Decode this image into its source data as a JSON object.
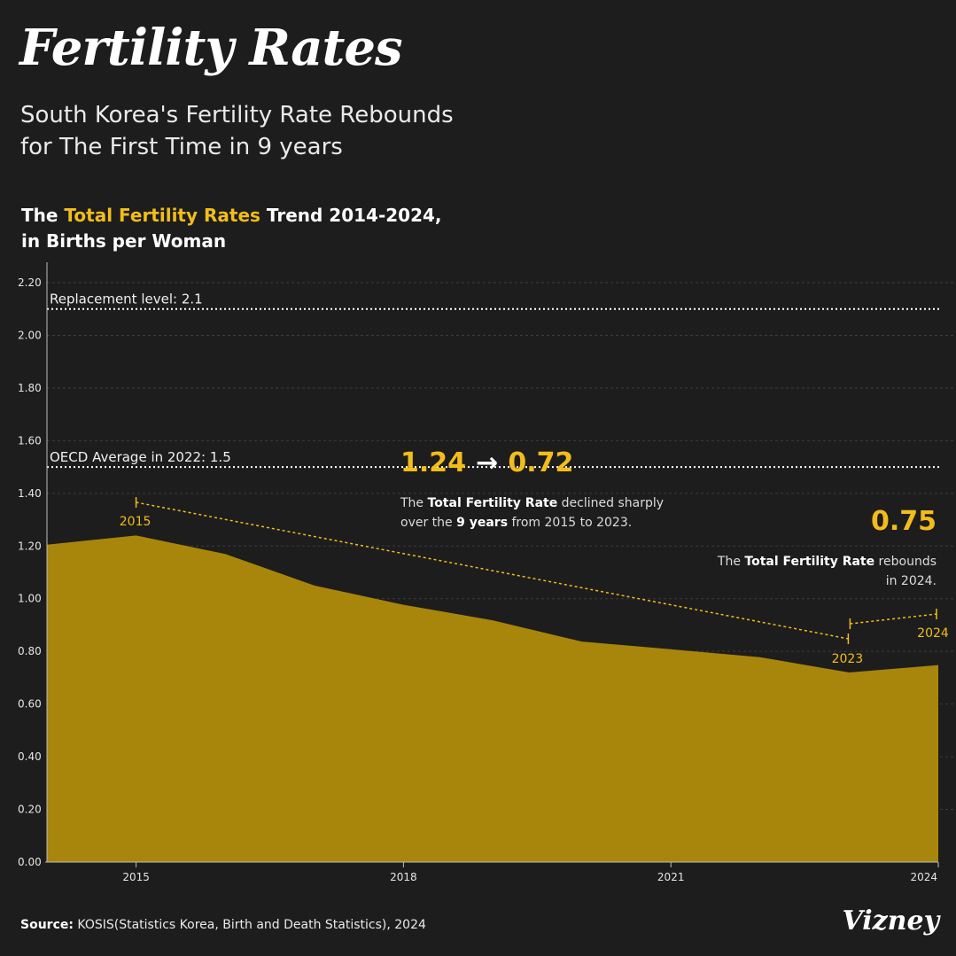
{
  "header": {
    "title": "Fertility Rates",
    "subtitle_line1": "South Korea's Fertility Rate Rebounds",
    "subtitle_line2": "for The First Time in 9 years"
  },
  "chart_heading": {
    "prefix": "The ",
    "highlight": "Total Fertility Rates",
    "suffix": " Trend 2014-2024,",
    "line2": "in Births per Woman"
  },
  "colors": {
    "background": "#1d1d1d",
    "area": "#a8860b",
    "accent": "#f2bd1b"
  },
  "chart_data": {
    "type": "area",
    "x": [
      2014,
      2015,
      2016,
      2017,
      2018,
      2019,
      2020,
      2021,
      2022,
      2023,
      2024
    ],
    "values": [
      1.205,
      1.24,
      1.17,
      1.05,
      0.977,
      0.918,
      0.837,
      0.808,
      0.778,
      0.72,
      0.748
    ],
    "ylim": [
      0,
      2.2
    ],
    "xlim": [
      2014,
      2024
    ],
    "yticks": [
      0,
      0.2,
      0.4,
      0.6,
      0.8,
      1.0,
      1.2,
      1.4,
      1.6,
      1.8,
      2.0,
      2.2
    ],
    "ytick_labels": [
      "0.00",
      "0.20",
      "0.40",
      "0.60",
      "0.80",
      "1.00",
      "1.20",
      "1.40",
      "1.60",
      "1.80",
      "2.00",
      "2.20"
    ],
    "xticks": [
      2015,
      2018,
      2021,
      2024
    ],
    "xtick_labels": [
      "2015",
      "2018",
      "2021",
      "2024"
    ],
    "grid": true,
    "reference_lines": [
      {
        "value": 2.1,
        "label": "Replacement level: 2.1"
      },
      {
        "value": 1.5,
        "label": "OECD Average in 2022: 1.5"
      }
    ],
    "annotations": {
      "decline": {
        "headline_from": "1.24",
        "arrow": "→",
        "headline_to": "0.72",
        "line1_pre": "The ",
        "line1_bold": "Total Fertility Rate",
        "line1_post": " declined sharply",
        "line2_pre": "over the ",
        "line2_bold": "9 years",
        "line2_post": " from 2015 to 2023.",
        "start_label": "2015",
        "end_label": "2023"
      },
      "rebound": {
        "headline": "0.75",
        "line1_pre": "The ",
        "line1_bold": "Total Fertility Rate",
        "line1_post": " rebounds",
        "line2": "in 2024.",
        "start_label": "2023",
        "end_label": "2024"
      }
    }
  },
  "footer": {
    "source_label": "Source:",
    "source_text": " KOSIS(Statistics Korea, Birth and Death Statistics), 2024",
    "brand": "Vizney"
  }
}
